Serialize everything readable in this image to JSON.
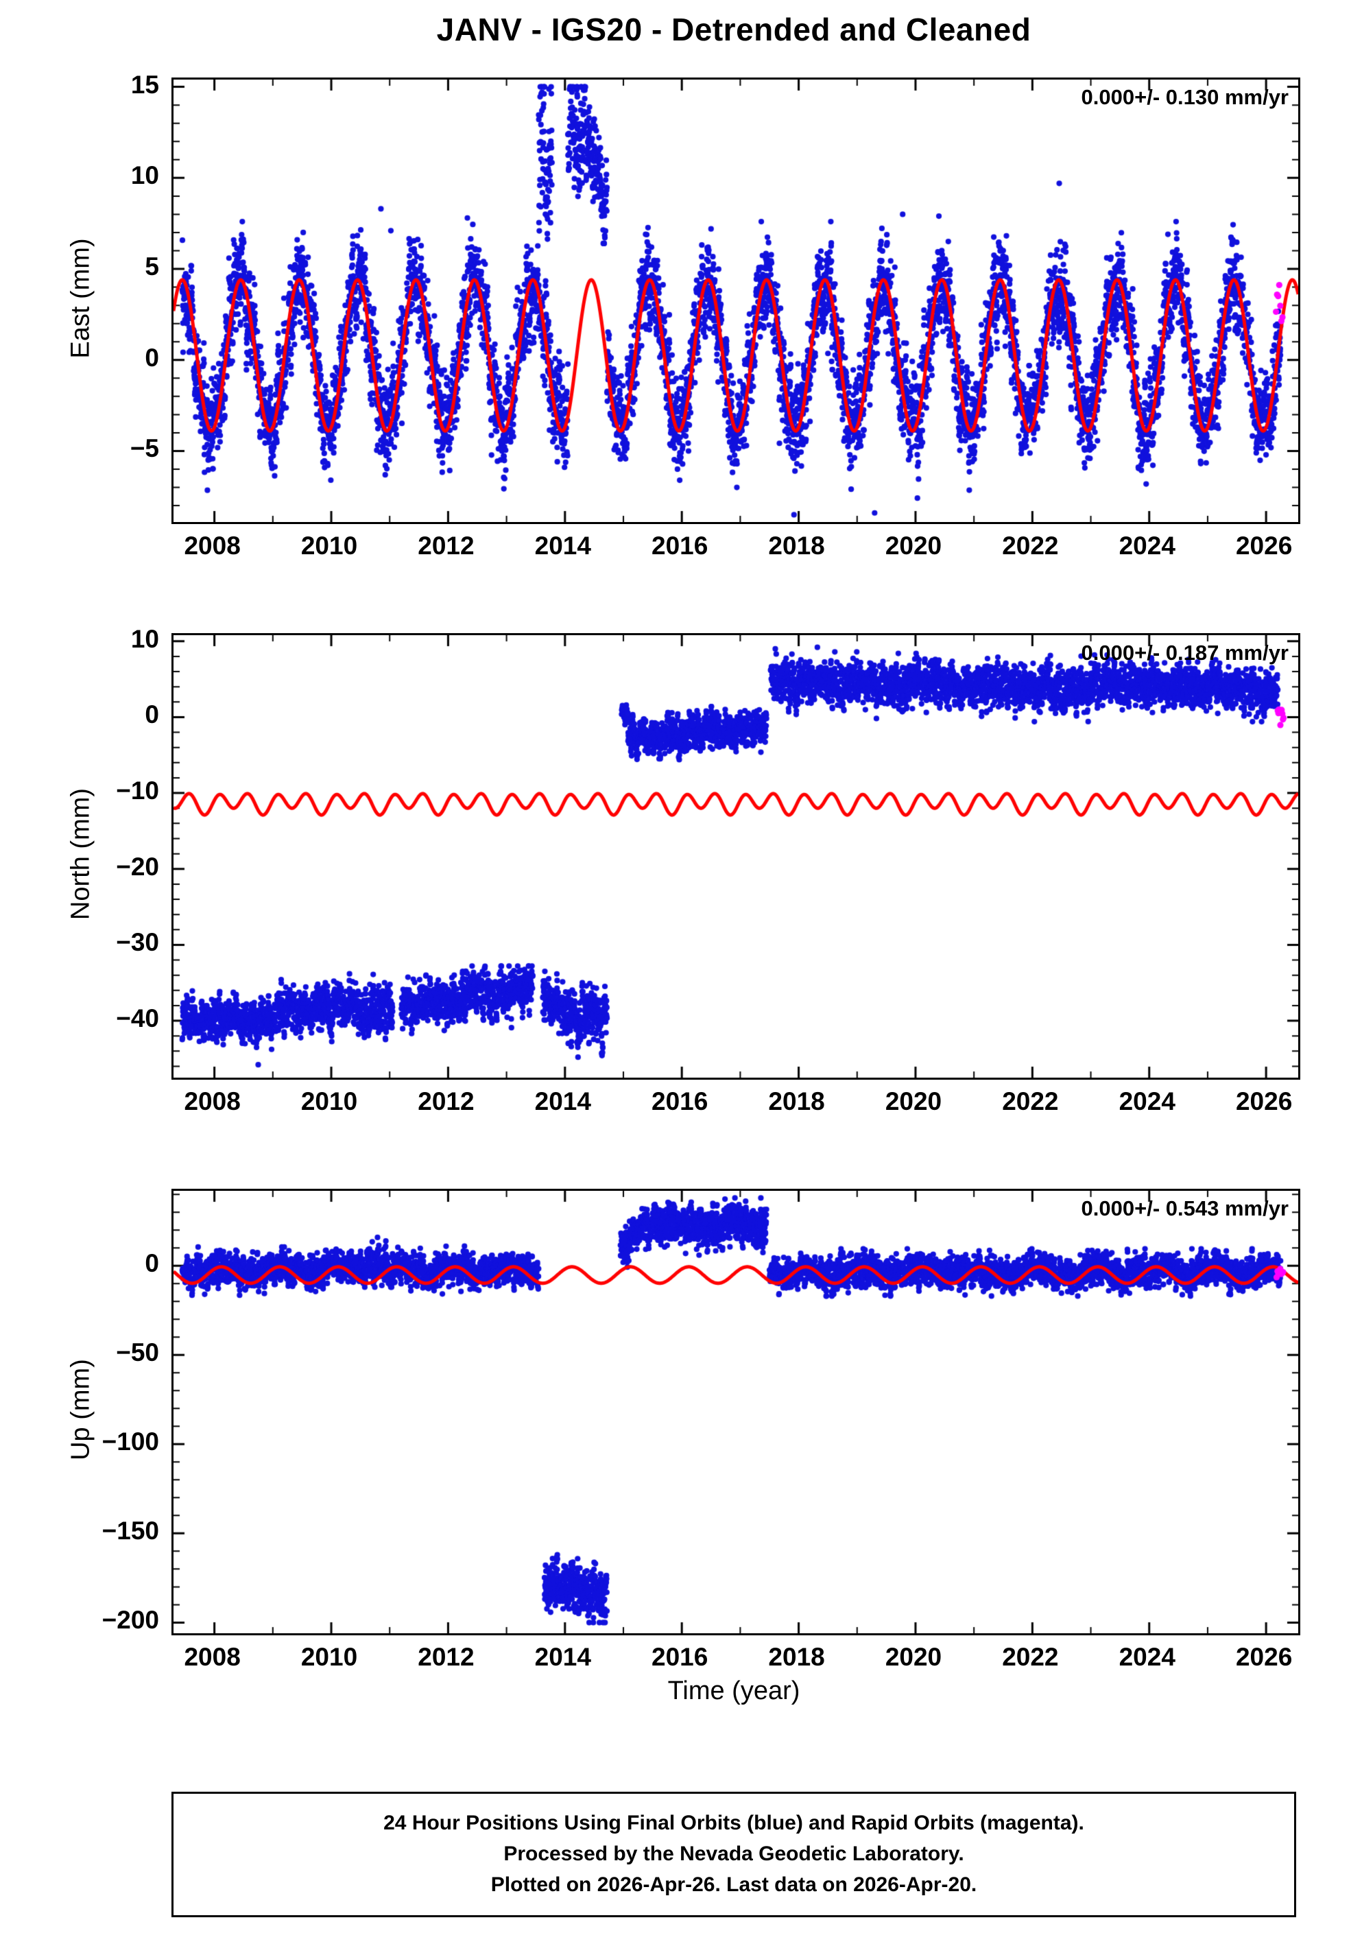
{
  "title": "JANV - IGS20 - Detrended and Cleaned",
  "xlabel": "Time (year)",
  "footer": {
    "line1": "24 Hour Positions Using Final Orbits (blue) and Rapid Orbits (magenta).",
    "line2": "Processed by the Nevada Geodetic Laboratory.",
    "line3": "Plotted on 2026-Apr-26. Last data on 2026-Apr-20."
  },
  "colors": {
    "blue": "#1111dd",
    "red": "#ff0000",
    "magenta": "#ff00ff",
    "frame": "#000000"
  },
  "chart_data": [
    {
      "type": "scatter",
      "name": "east",
      "ylabel": "East (mm)",
      "annotation": "0.000+/- 0.130 mm/yr",
      "ylim": [
        -8.9,
        15.4
      ],
      "yticks": [
        15,
        10,
        5,
        0,
        -5
      ],
      "y_minor_step": 1,
      "xlim": [
        2007.3,
        2026.55
      ],
      "xticks": [
        2008,
        2010,
        2012,
        2014,
        2016,
        2018,
        2020,
        2022,
        2024,
        2026
      ],
      "x_minor_step": 1,
      "model_curve": {
        "mean": 0.25,
        "terms": [
          {
            "amplitude": 4.15,
            "period": 1,
            "peak_at": 0.45
          }
        ]
      },
      "blue_segments": [
        {
          "t0": 2007.45,
          "t1": 2014.05,
          "m0": 0.25,
          "m1": 0.25,
          "sigma": 1.35,
          "clip": [
            -8.5,
            7.6
          ],
          "seasonal": {
            "amplitude": 3.9,
            "period": 1,
            "peak_at": 0.45
          }
        },
        {
          "t0": 2013.55,
          "t1": 2013.78,
          "m0": 10.8,
          "m1": 10.8,
          "sigma": 2.6,
          "clip": [
            6.2,
            15.0
          ]
        },
        {
          "t0": 2014.05,
          "t1": 2014.45,
          "m0": 12.2,
          "m1": 12.2,
          "sigma": 1.7,
          "clip": [
            8.3,
            15.0
          ]
        },
        {
          "t0": 2014.45,
          "t1": 2014.72,
          "m0": 11.8,
          "m1": 8.6,
          "sigma": 1.4,
          "clip": [
            6.4,
            14.6
          ]
        },
        {
          "t0": 2014.72,
          "t1": 2026.25,
          "m0": 0.25,
          "m1": 0.25,
          "sigma": 1.35,
          "clip": [
            -8.6,
            7.6
          ],
          "seasonal": {
            "amplitude": 3.9,
            "period": 1,
            "peak_at": 0.45
          }
        }
      ],
      "outliers": [
        [
          2008.46,
          6.6
        ],
        [
          2009.52,
          7.0
        ],
        [
          2010.85,
          8.3
        ],
        [
          2011.02,
          7.1
        ],
        [
          2012.33,
          7.8
        ],
        [
          2015.38,
          6.9
        ],
        [
          2016.5,
          7.2
        ],
        [
          2017.36,
          7.6
        ],
        [
          2017.92,
          -8.5
        ],
        [
          2019.3,
          -8.4
        ],
        [
          2019.78,
          8.0
        ],
        [
          2020.4,
          7.9
        ],
        [
          2022.46,
          9.7
        ],
        [
          2024.32,
          6.9
        ]
      ],
      "magenta_points": {
        "t0": 2026.17,
        "t1": 2026.28,
        "mean": 3.2,
        "sigma": 0.5,
        "n": 7
      }
    },
    {
      "type": "scatter",
      "name": "north",
      "ylabel": "North (mm)",
      "annotation": "0.000+/- 0.187 mm/yr",
      "ylim": [
        -47.5,
        10.8
      ],
      "yticks": [
        10,
        0,
        -10,
        -20,
        -30,
        -40
      ],
      "y_minor_step": 2,
      "xlim": [
        2007.3,
        2026.55
      ],
      "xticks": [
        2008,
        2010,
        2012,
        2014,
        2016,
        2018,
        2020,
        2022,
        2024,
        2026
      ],
      "x_minor_step": 1,
      "model_curve": {
        "mean": -11.3,
        "terms": [
          {
            "amplitude": 1.15,
            "period": 0.5,
            "peak_at": 0.08
          },
          {
            "amplitude": 0.45,
            "period": 1,
            "peak_at": 0.35
          }
        ]
      },
      "blue_segments": [
        {
          "t0": 2007.45,
          "t1": 2009.0,
          "m0": -40.3,
          "m1": -39.9,
          "sigma": 1.45,
          "clip": [
            -45.4,
            -35.5
          ]
        },
        {
          "t0": 2009.0,
          "t1": 2011.05,
          "m0": -38.7,
          "m1": -38.3,
          "sigma": 1.55,
          "clip": [
            -43.8,
            -33.8
          ]
        },
        {
          "t0": 2011.2,
          "t1": 2012.15,
          "m0": -38.4,
          "m1": -37.6,
          "sigma": 1.4,
          "clip": [
            -42.5,
            -34.0
          ]
        },
        {
          "t0": 2012.15,
          "t1": 2013.45,
          "m0": -36.8,
          "m1": -35.6,
          "sigma": 1.5,
          "clip": [
            -41.0,
            -32.8
          ]
        },
        {
          "t0": 2013.62,
          "t1": 2014.1,
          "m0": -37.6,
          "m1": -38.4,
          "sigma": 1.7,
          "clip": [
            -43.0,
            -33.5
          ]
        },
        {
          "t0": 2014.1,
          "t1": 2014.72,
          "m0": -39.6,
          "m1": -40.0,
          "sigma": 1.7,
          "clip": [
            -44.8,
            -35.0
          ]
        },
        {
          "t0": 2014.97,
          "t1": 2015.08,
          "m0": 0.4,
          "m1": 0.4,
          "sigma": 0.6,
          "clip": [
            -1.2,
            1.6
          ]
        },
        {
          "t0": 2015.08,
          "t1": 2015.8,
          "m0": -2.7,
          "m1": -2.2,
          "sigma": 1.15,
          "clip": [
            -6.3,
            0.6
          ]
        },
        {
          "t0": 2015.8,
          "t1": 2017.45,
          "m0": -1.9,
          "m1": -1.6,
          "sigma": 1.25,
          "clip": [
            -5.6,
            1.4
          ]
        },
        {
          "t0": 2017.52,
          "t1": 2019.5,
          "m0": 4.6,
          "m1": 4.4,
          "sigma": 1.4,
          "clip": [
            -0.3,
            8.6
          ]
        },
        {
          "t0": 2019.5,
          "t1": 2023.0,
          "m0": 4.2,
          "m1": 3.9,
          "sigma": 1.45,
          "clip": [
            -0.6,
            8.4
          ]
        },
        {
          "t0": 2023.0,
          "t1": 2026.2,
          "m0": 4.3,
          "m1": 3.6,
          "sigma": 1.4,
          "clip": [
            -0.6,
            8.2
          ]
        }
      ],
      "outliers": [
        [
          2008.75,
          -45.8
        ],
        [
          2017.6,
          9.0
        ],
        [
          2018.32,
          9.2
        ],
        [
          2026.1,
          6.5
        ]
      ],
      "magenta_points": {
        "t0": 2026.2,
        "t1": 2026.3,
        "mean": 1.1,
        "sigma": 0.9,
        "n": 10
      }
    },
    {
      "type": "scatter",
      "name": "up",
      "ylabel": "Up (mm)",
      "annotation": "0.000+/- 0.543 mm/yr",
      "ylim": [
        -206,
        42
      ],
      "yticks": [
        0,
        -50,
        -100,
        -150,
        -200
      ],
      "y_minor_step": 10,
      "xlim": [
        2007.3,
        2026.55
      ],
      "xticks": [
        2008,
        2010,
        2012,
        2014,
        2016,
        2018,
        2020,
        2022,
        2024,
        2026
      ],
      "x_minor_step": 1,
      "model_curve": {
        "mean": -5.2,
        "terms": [
          {
            "amplitude": 4.6,
            "period": 1,
            "peak_at": 0.12
          }
        ]
      },
      "blue_segments": [
        {
          "t0": 2007.45,
          "t1": 2010.6,
          "m0": -2.8,
          "m1": -2.2,
          "sigma": 4.6,
          "clip": [
            -16.5,
            10.5
          ],
          "seasonal": {
            "amplitude": 1.8,
            "period": 1,
            "peak_at": 0.12
          }
        },
        {
          "t0": 2010.6,
          "t1": 2011.05,
          "m0": 1.5,
          "m1": 1.0,
          "sigma": 5.5,
          "clip": [
            -12,
            18
          ]
        },
        {
          "t0": 2011.05,
          "t1": 2013.55,
          "m0": -2.4,
          "m1": -1.8,
          "sigma": 4.4,
          "clip": [
            -16,
            11
          ],
          "seasonal": {
            "amplitude": 1.8,
            "period": 1,
            "peak_at": 0.12
          }
        },
        {
          "t0": 2013.65,
          "t1": 2014.72,
          "m0": -178,
          "m1": -186,
          "sigma": 7,
          "clip": [
            -200,
            -162
          ]
        },
        {
          "t0": 2014.95,
          "t1": 2015.35,
          "m0": 9,
          "m1": 22,
          "sigma": 5,
          "clip": [
            -2,
            33
          ]
        },
        {
          "t0": 2015.35,
          "t1": 2017.45,
          "m0": 23.5,
          "m1": 22,
          "sigma": 6,
          "clip": [
            5,
            38
          ]
        },
        {
          "t0": 2017.5,
          "t1": 2026.25,
          "m0": -3.2,
          "m1": -3.4,
          "sigma": 4.6,
          "clip": [
            -17,
            9.5
          ],
          "seasonal": {
            "amplitude": 1.5,
            "period": 1,
            "peak_at": 0.12
          }
        }
      ],
      "outliers": [
        [
          2018.6,
          -16
        ],
        [
          2021.3,
          -17
        ]
      ],
      "magenta_points": {
        "t0": 2026.18,
        "t1": 2026.29,
        "mean": -4.5,
        "sigma": 1.8,
        "n": 8
      }
    }
  ]
}
